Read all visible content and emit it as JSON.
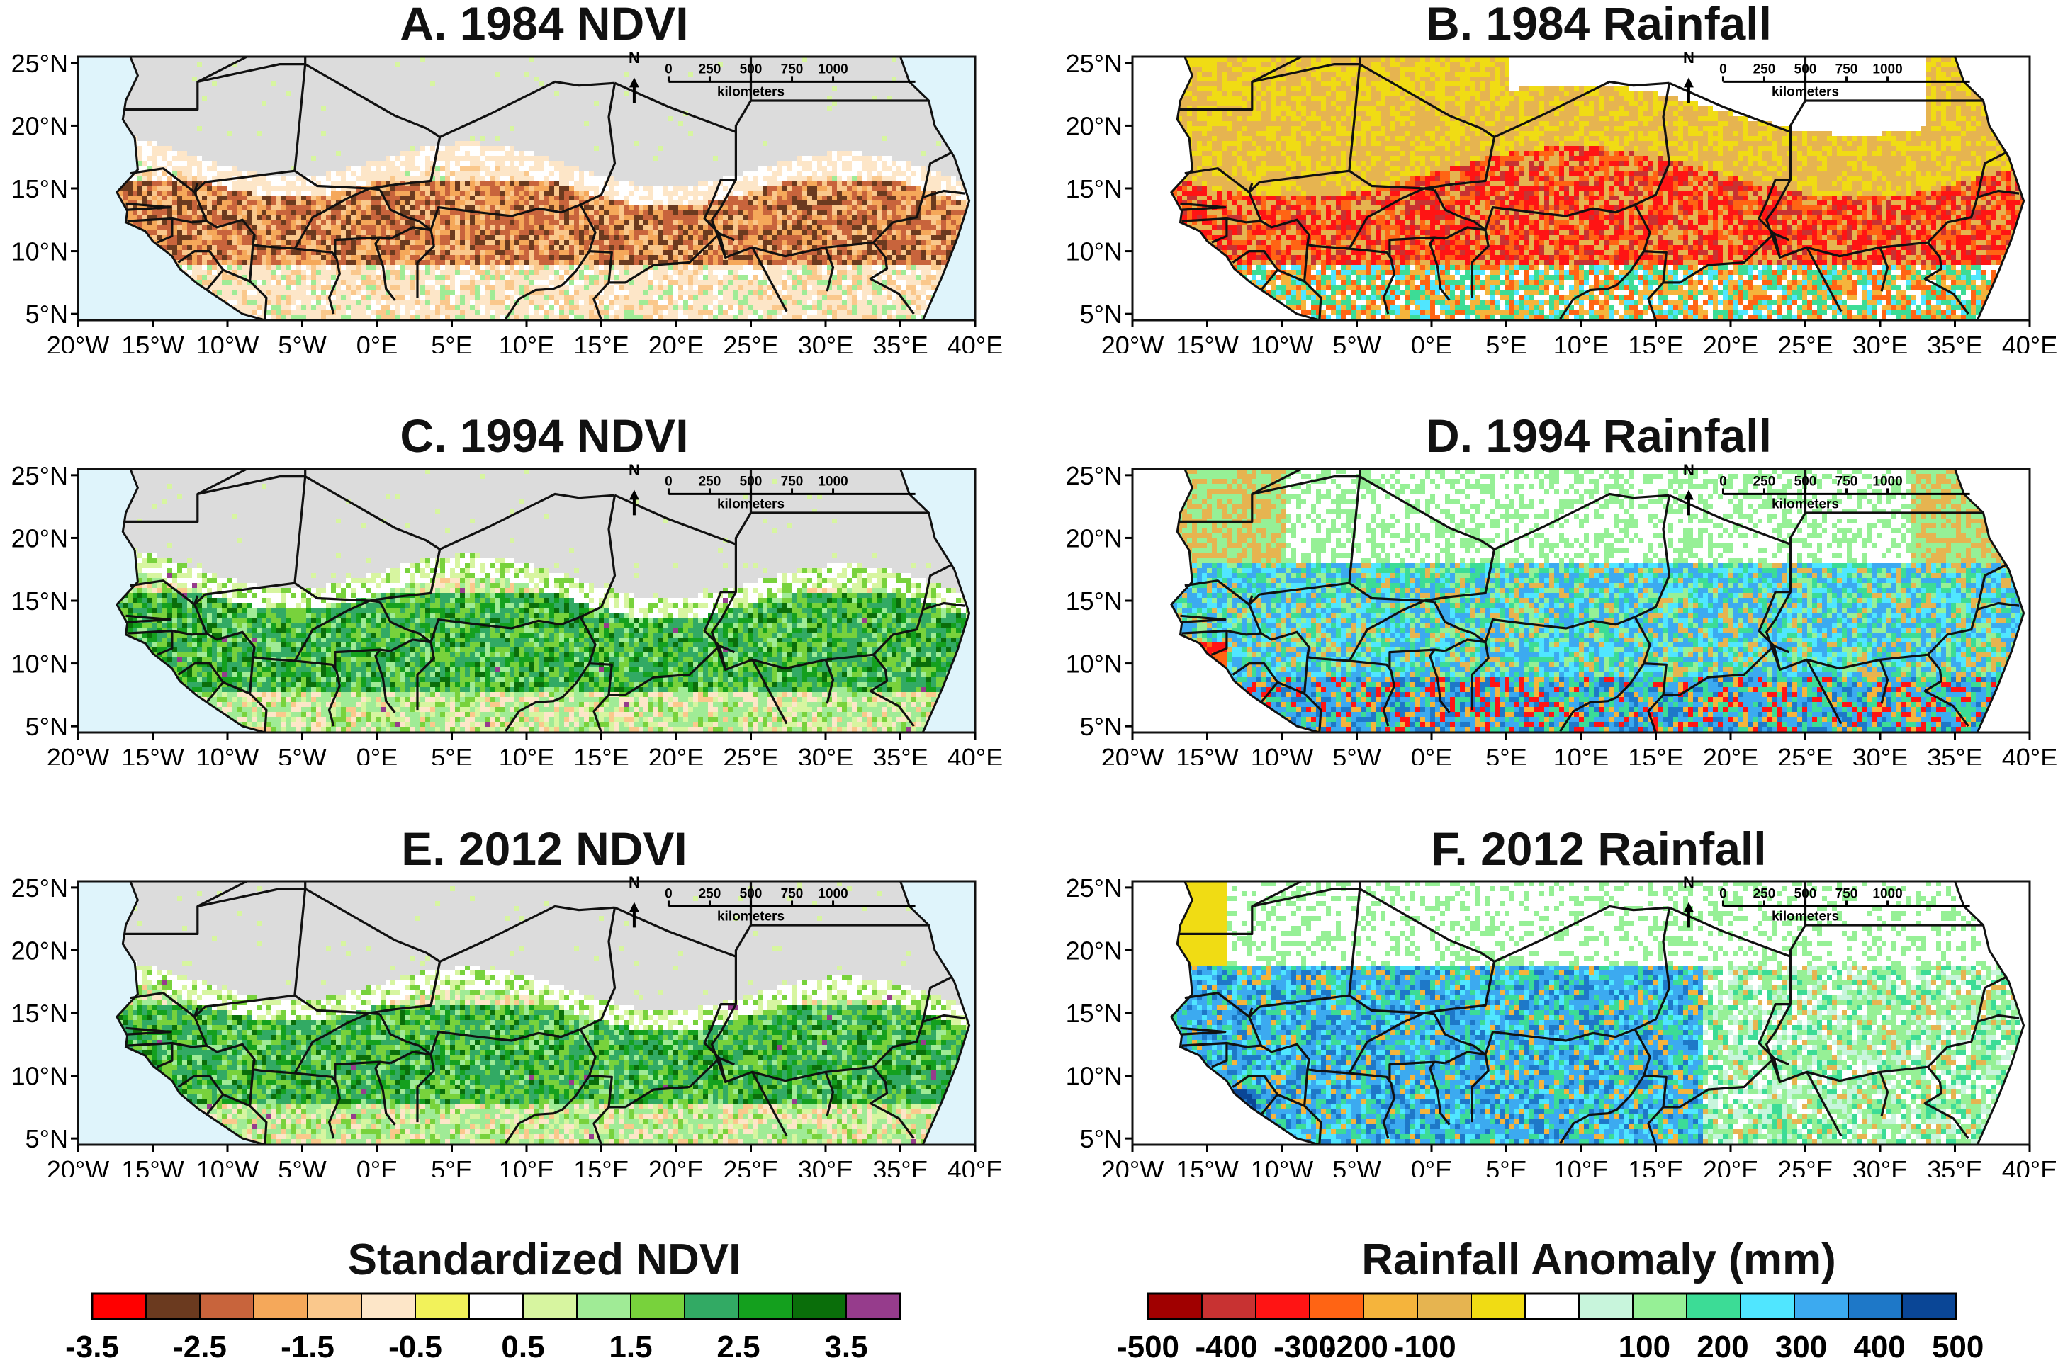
{
  "panels": [
    {
      "title": "A. 1984 NDVI",
      "variable": "ndvi",
      "year": 1984,
      "anomaly_sign": "negative"
    },
    {
      "title": "B. 1984 Rainfall",
      "variable": "rainfall",
      "year": 1984,
      "anomaly_sign": "negative"
    },
    {
      "title": "C. 1994 NDVI",
      "variable": "ndvi",
      "year": 1994,
      "anomaly_sign": "positive"
    },
    {
      "title": "D. 1994 Rainfall",
      "variable": "rainfall",
      "year": 1994,
      "anomaly_sign": "positive"
    },
    {
      "title": "E. 2012 NDVI",
      "variable": "ndvi",
      "year": 2012,
      "anomaly_sign": "positive"
    },
    {
      "title": "F. 2012 Rainfall",
      "variable": "rainfall",
      "year": 2012,
      "anomaly_sign": "positive"
    }
  ],
  "axes": {
    "lat_ticks": [
      "25°N",
      "20°N",
      "15°N",
      "10°N",
      "5°N"
    ],
    "lat_values": [
      25,
      20,
      15,
      10,
      5
    ],
    "lon_ticks": [
      "20°W",
      "15°W",
      "10°W",
      "5°W",
      "0°E",
      "5°E",
      "10°E",
      "15°E",
      "20°E",
      "25°E",
      "30°E",
      "35°E",
      "40°E"
    ],
    "lon_values": [
      -20,
      -15,
      -10,
      -5,
      0,
      5,
      10,
      15,
      20,
      25,
      30,
      35,
      40
    ],
    "lat_range": [
      4.5,
      25.5
    ],
    "lon_range": [
      -20,
      40
    ]
  },
  "map_annotations": {
    "north_label": "N",
    "scale_ticks": [
      "0",
      "250",
      "500",
      "750",
      "1000"
    ],
    "scale_unit": "kilometers"
  },
  "colors": {
    "ocean": "#dff4fb",
    "no_data": "#dcdcdc",
    "border": "#111111"
  },
  "ndvi_colorbar": {
    "title": "Standardized NDVI",
    "labels": [
      "-3.5",
      "-2.5",
      "-1.5",
      "-0.5",
      "0.5",
      "1.5",
      "2.5",
      "3.5"
    ],
    "colors": [
      "#ff0000",
      "#6b3a1f",
      "#c8643c",
      "#f5a85a",
      "#fac88c",
      "#fde6c8",
      "#f2f25a",
      "#ffffff",
      "#d7f5a0",
      "#a0eb96",
      "#78d23c",
      "#32aa64",
      "#14a01e",
      "#0a6e0a",
      "#963c8c"
    ]
  },
  "rain_colorbar": {
    "title": "Rainfall Anomaly (mm)",
    "labels": [
      "-500",
      "-400",
      "-300",
      "-200",
      "-100",
      "100",
      "200",
      "300",
      "400",
      "500"
    ],
    "colors": [
      "#a00000",
      "#c83232",
      "#ff1414",
      "#ff6414",
      "#f5b43c",
      "#e6b450",
      "#f0dc14",
      "#ffffff",
      "#c8f5dc",
      "#96f096",
      "#3cdc96",
      "#50e6ff",
      "#3caaf0",
      "#1e78c8",
      "#0a4696"
    ]
  }
}
